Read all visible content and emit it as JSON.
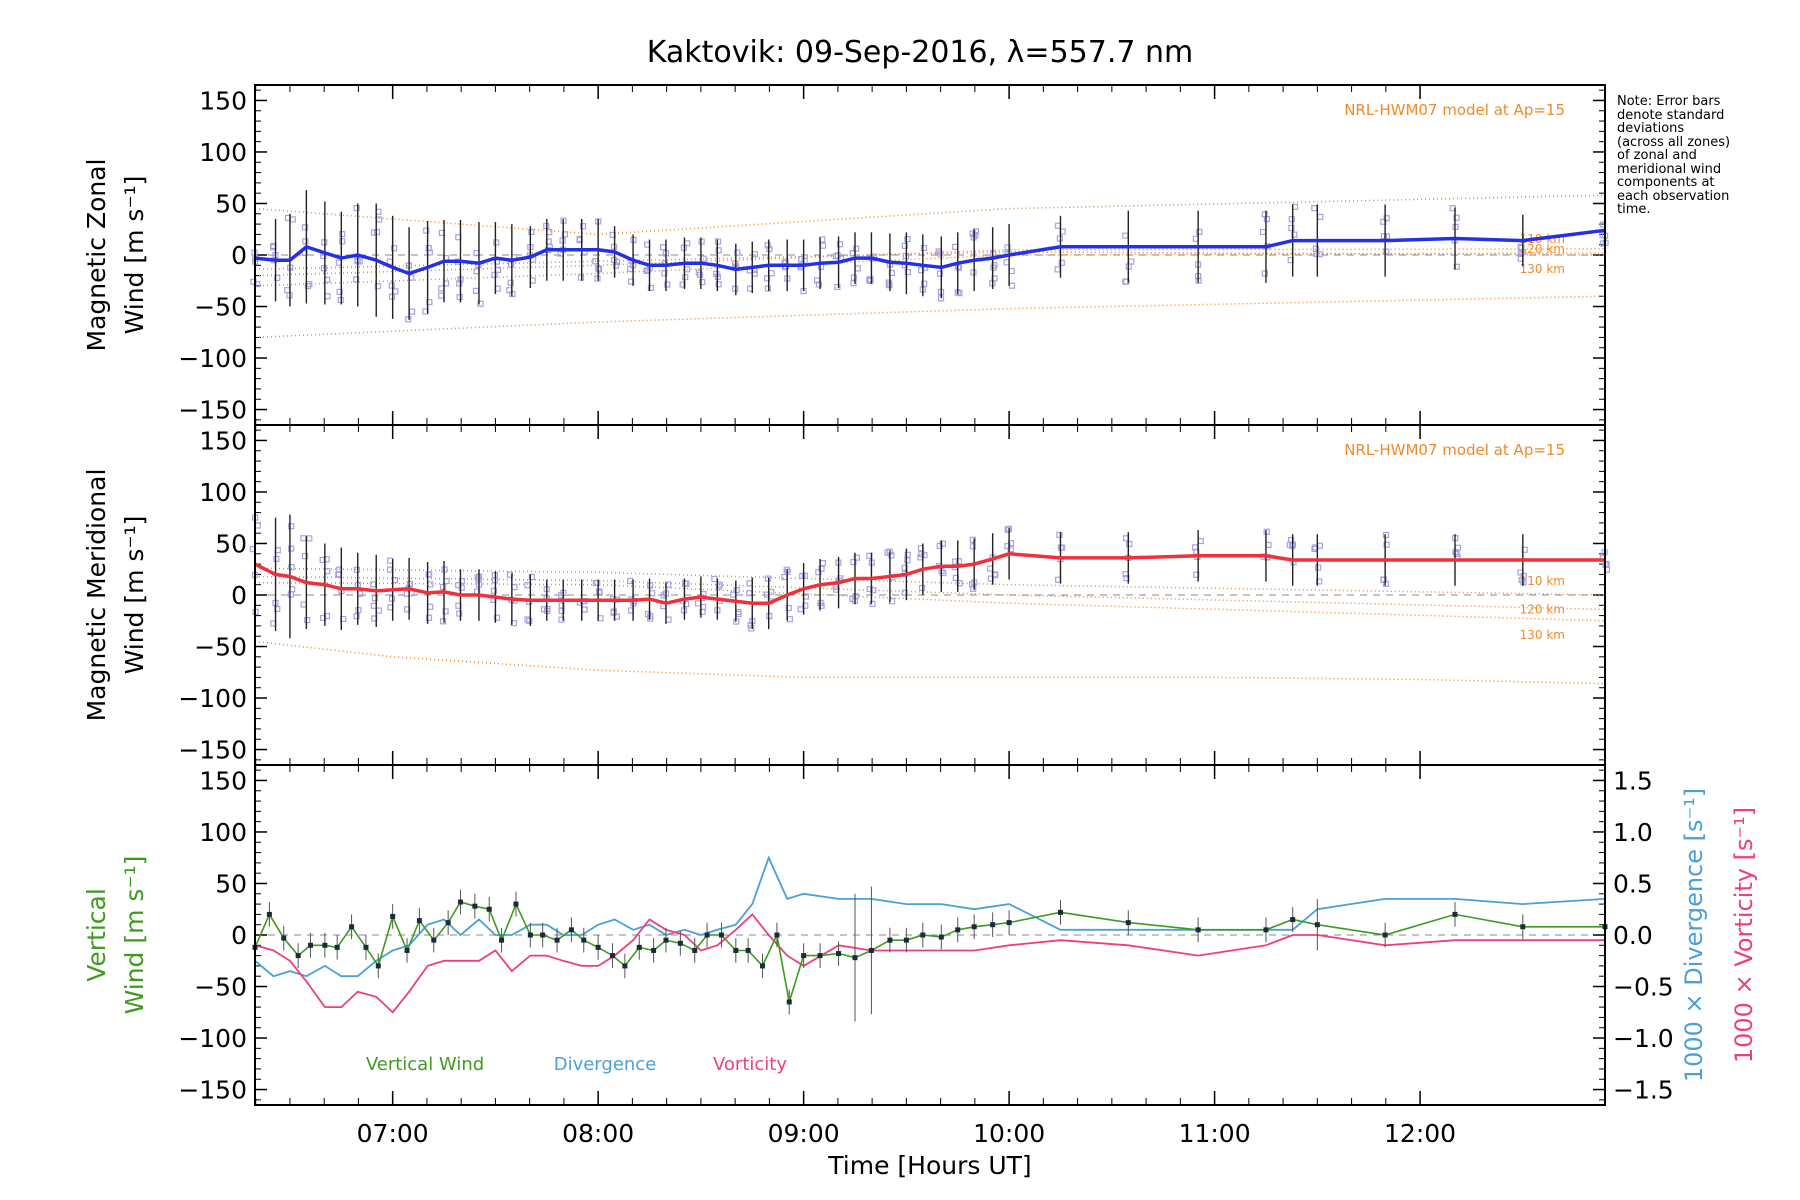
{
  "title": "Kaktovik: 09-Sep-2016, λ=557.7 nm",
  "note": {
    "lines": [
      "Note: Error bars",
      "denote standard",
      "deviations",
      "(across all zones)",
      "of zonal and",
      "meridional wind",
      "components at",
      "each observation",
      "time."
    ]
  },
  "colors": {
    "zonal": "#2430e8",
    "meridional": "#f0303a",
    "vertical": "#3f9b1e",
    "divergence": "#4aa0d8",
    "vorticity": "#ef3e80",
    "model": "#f08a2a",
    "scatter": "#a9a2e0",
    "zero_line": "#888888",
    "error_bar": "#222222"
  },
  "chart_data": [
    {
      "type": "line",
      "ylabel": [
        "Magnetic Zonal",
        "Wind [m s⁻¹]"
      ],
      "ylim": [
        -165,
        165
      ],
      "yticks": [
        "150",
        "100",
        "50",
        "0",
        "−50",
        "−100",
        "−150"
      ],
      "model_label": "NRL-HWM07 model at Ap=15",
      "model_series": [
        {
          "name": "110 km",
          "x": [
            6.33,
            8.0,
            10.0,
            12.9
          ],
          "y": [
            -30,
            -18,
            0,
            2
          ]
        },
        {
          "name": "120 km",
          "x": [
            6.33,
            8.0,
            10.0,
            12.9
          ],
          "y": [
            -20,
            -10,
            5,
            6
          ]
        },
        {
          "name": "130 km",
          "x": [
            6.33,
            8.0,
            10.0,
            12.9
          ],
          "y": [
            -14,
            -6,
            3,
            0
          ]
        },
        {
          "name": "",
          "x": [
            6.33,
            8.0,
            10.0,
            12.9
          ],
          "y": [
            45,
            20,
            45,
            58
          ]
        },
        {
          "name": "",
          "x": [
            6.33,
            8.0,
            10.0,
            12.9
          ],
          "y": [
            -80,
            -65,
            -52,
            -40
          ]
        }
      ],
      "series": [
        {
          "name": "Zonal wind",
          "x": [
            6.33,
            6.43,
            6.5,
            6.58,
            6.67,
            6.75,
            6.83,
            6.92,
            7.0,
            7.08,
            7.17,
            7.25,
            7.33,
            7.42,
            7.5,
            7.58,
            7.67,
            7.75,
            7.83,
            7.92,
            8.0,
            8.08,
            8.17,
            8.25,
            8.33,
            8.42,
            8.5,
            8.58,
            8.67,
            8.75,
            8.83,
            8.92,
            9.0,
            9.08,
            9.17,
            9.25,
            9.33,
            9.42,
            9.5,
            9.58,
            9.67,
            9.75,
            9.83,
            9.92,
            10.0,
            10.25,
            10.58,
            10.92,
            11.25,
            11.38,
            11.5,
            11.83,
            12.17,
            12.5,
            12.9
          ],
          "y": [
            -3,
            -5,
            -5,
            8,
            2,
            -3,
            0,
            -5,
            -12,
            -18,
            -12,
            -6,
            -6,
            -8,
            -3,
            -5,
            -2,
            5,
            5,
            5,
            5,
            3,
            -5,
            -10,
            -10,
            -8,
            -8,
            -10,
            -14,
            -12,
            -10,
            -10,
            -10,
            -8,
            -7,
            -3,
            -3,
            -7,
            -8,
            -10,
            -12,
            -8,
            -5,
            -3,
            0,
            8,
            8,
            8,
            8,
            14,
            14,
            14,
            16,
            14,
            24
          ],
          "err": [
            30,
            40,
            45,
            55,
            50,
            45,
            50,
            55,
            50,
            45,
            45,
            40,
            40,
            40,
            35,
            35,
            30,
            30,
            30,
            30,
            30,
            25,
            25,
            25,
            25,
            25,
            25,
            25,
            25,
            25,
            25,
            25,
            25,
            25,
            25,
            25,
            25,
            28,
            30,
            30,
            30,
            30,
            30,
            30,
            30,
            30,
            35,
            35,
            35,
            35,
            35,
            35,
            30,
            25,
            15
          ]
        }
      ]
    },
    {
      "type": "line",
      "ylabel": [
        "Magnetic Meridional",
        "Wind [m s⁻¹]"
      ],
      "ylim": [
        -165,
        165
      ],
      "yticks": [
        "150",
        "100",
        "50",
        "0",
        "−50",
        "−100",
        "−150"
      ],
      "model_label": "NRL-HWM07 model at Ap=15",
      "model_series": [
        {
          "name": "110 km",
          "x": [
            6.33,
            8.0,
            10.0,
            12.9
          ],
          "y": [
            26,
            22,
            10,
            0
          ]
        },
        {
          "name": "120 km",
          "x": [
            6.33,
            8.0,
            10.0,
            12.9
          ],
          "y": [
            18,
            14,
            0,
            -14
          ]
        },
        {
          "name": "130 km",
          "x": [
            6.33,
            8.0,
            10.0,
            12.9
          ],
          "y": [
            12,
            10,
            -8,
            -25
          ]
        },
        {
          "name": "",
          "x": [
            6.33,
            7.0,
            8.0,
            9.0,
            10.0,
            11.0,
            12.0,
            12.9
          ],
          "y": [
            -45,
            -60,
            -73,
            -80,
            -80,
            -80,
            -82,
            -86
          ]
        }
      ],
      "series": [
        {
          "name": "Meridional wind",
          "x": [
            6.33,
            6.43,
            6.5,
            6.58,
            6.67,
            6.75,
            6.83,
            6.92,
            7.0,
            7.08,
            7.17,
            7.25,
            7.33,
            7.42,
            7.5,
            7.58,
            7.67,
            7.75,
            7.83,
            7.92,
            8.0,
            8.08,
            8.17,
            8.25,
            8.33,
            8.42,
            8.5,
            8.58,
            8.67,
            8.75,
            8.83,
            8.92,
            9.0,
            9.08,
            9.17,
            9.25,
            9.33,
            9.42,
            9.5,
            9.58,
            9.67,
            9.75,
            9.83,
            9.92,
            10.0,
            10.25,
            10.58,
            10.92,
            11.25,
            11.38,
            11.5,
            11.83,
            12.17,
            12.5,
            12.9
          ],
          "y": [
            30,
            20,
            18,
            12,
            10,
            6,
            6,
            4,
            5,
            6,
            2,
            3,
            0,
            0,
            -2,
            -4,
            -5,
            -5,
            -5,
            -5,
            -5,
            -5,
            -5,
            -4,
            -8,
            -4,
            -2,
            -4,
            -6,
            -8,
            -8,
            0,
            6,
            10,
            12,
            16,
            16,
            18,
            20,
            25,
            28,
            28,
            30,
            35,
            40,
            36,
            36,
            38,
            38,
            34,
            34,
            34,
            34,
            34,
            34
          ],
          "err": [
            55,
            55,
            60,
            45,
            40,
            40,
            35,
            35,
            30,
            30,
            30,
            30,
            25,
            25,
            25,
            25,
            25,
            20,
            20,
            20,
            20,
            20,
            20,
            20,
            20,
            20,
            20,
            20,
            20,
            25,
            25,
            25,
            25,
            25,
            25,
            25,
            25,
            25,
            25,
            25,
            25,
            25,
            25,
            25,
            25,
            25,
            25,
            25,
            25,
            25,
            25,
            25,
            25,
            25,
            10
          ]
        }
      ]
    },
    {
      "type": "line",
      "xlabel": "Time [Hours UT]",
      "xlim": [
        6.33,
        12.9
      ],
      "xticks": [
        "07:00",
        "08:00",
        "09:00",
        "10:00",
        "11:00",
        "12:00"
      ],
      "ylabel": [
        "Vertical",
        "Wind [m s⁻¹]"
      ],
      "ylim": [
        -165,
        165
      ],
      "yticks": [
        "150",
        "100",
        "50",
        "0",
        "−50",
        "−100",
        "−150"
      ],
      "y2label_divergence": "1000 × Divergence [s⁻¹]",
      "y2label_vorticity": "1000 × Vorticity [s⁻¹]",
      "y2lim": [
        -1.65,
        1.65
      ],
      "y2ticks": [
        "1.5",
        "1.0",
        "0.5",
        "0.0",
        "−0.5",
        "−1.0",
        "−1.5"
      ],
      "legend": [
        "Vertical Wind",
        "Divergence",
        "Vorticity"
      ],
      "series": [
        {
          "name": "Vertical Wind",
          "x": [
            6.33,
            6.4,
            6.47,
            6.54,
            6.6,
            6.67,
            6.73,
            6.8,
            6.87,
            6.93,
            7.0,
            7.07,
            7.13,
            7.2,
            7.27,
            7.33,
            7.4,
            7.47,
            7.53,
            7.6,
            7.67,
            7.73,
            7.8,
            7.87,
            7.93,
            8.0,
            8.07,
            8.13,
            8.2,
            8.27,
            8.33,
            8.4,
            8.47,
            8.53,
            8.6,
            8.67,
            8.73,
            8.8,
            8.87,
            8.93,
            9.0,
            9.08,
            9.17,
            9.25,
            9.33,
            9.42,
            9.5,
            9.58,
            9.67,
            9.75,
            9.83,
            9.92,
            10.0,
            10.25,
            10.58,
            10.92,
            11.25,
            11.38,
            11.5,
            11.83,
            12.17,
            12.5,
            12.9
          ],
          "y": [
            -12,
            20,
            -3,
            -20,
            -10,
            -10,
            -12,
            8,
            -12,
            -30,
            18,
            -15,
            14,
            -5,
            12,
            32,
            28,
            25,
            -5,
            30,
            0,
            0,
            -5,
            5,
            -5,
            -12,
            -20,
            -30,
            -12,
            -15,
            -5,
            -8,
            -15,
            0,
            0,
            -15,
            -15,
            -30,
            0,
            -65,
            -20,
            -20,
            -18,
            -22,
            -15,
            -5,
            -5,
            0,
            -2,
            5,
            8,
            10,
            12,
            22,
            12,
            5,
            5,
            15,
            10,
            0,
            20,
            8,
            8
          ],
          "err": [
            12,
            12,
            12,
            12,
            12,
            12,
            12,
            12,
            12,
            12,
            12,
            12,
            12,
            12,
            12,
            12,
            12,
            12,
            12,
            12,
            12,
            12,
            12,
            12,
            12,
            12,
            12,
            12,
            12,
            12,
            12,
            12,
            12,
            12,
            12,
            12,
            12,
            12,
            12,
            12,
            12,
            12,
            12,
            62,
            62,
            12,
            12,
            12,
            12,
            12,
            12,
            12,
            12,
            12,
            12,
            12,
            12,
            12,
            25,
            12,
            12,
            12,
            12
          ]
        },
        {
          "name": "Divergence",
          "x": [
            6.33,
            6.42,
            6.5,
            6.58,
            6.67,
            6.75,
            6.83,
            6.92,
            7.0,
            7.08,
            7.17,
            7.25,
            7.33,
            7.42,
            7.5,
            7.58,
            7.67,
            7.75,
            7.83,
            7.92,
            8.0,
            8.08,
            8.17,
            8.25,
            8.33,
            8.42,
            8.5,
            8.58,
            8.67,
            8.75,
            8.83,
            8.92,
            9.0,
            9.17,
            9.33,
            9.5,
            9.67,
            9.83,
            10.0,
            10.25,
            10.58,
            10.92,
            11.25,
            11.38,
            11.5,
            11.83,
            12.17,
            12.5,
            12.9
          ],
          "y": [
            -0.25,
            -0.4,
            -0.35,
            -0.4,
            -0.3,
            -0.4,
            -0.4,
            -0.25,
            -0.15,
            -0.1,
            0.1,
            0.15,
            0.0,
            0.15,
            0.0,
            0.0,
            0.1,
            0.1,
            0.0,
            0.0,
            0.1,
            0.15,
            0.05,
            0.1,
            0.0,
            0.05,
            0.0,
            0.05,
            0.1,
            0.3,
            0.75,
            0.35,
            0.4,
            0.35,
            0.35,
            0.3,
            0.3,
            0.25,
            0.3,
            0.05,
            0.05,
            0.05,
            0.05,
            0.05,
            0.25,
            0.35,
            0.35,
            0.3,
            0.35
          ]
        },
        {
          "name": "Vorticity",
          "x": [
            6.33,
            6.42,
            6.5,
            6.58,
            6.67,
            6.75,
            6.83,
            6.92,
            7.0,
            7.08,
            7.17,
            7.25,
            7.33,
            7.42,
            7.5,
            7.58,
            7.67,
            7.75,
            7.83,
            7.92,
            8.0,
            8.08,
            8.17,
            8.25,
            8.33,
            8.42,
            8.5,
            8.58,
            8.67,
            8.75,
            8.83,
            8.92,
            9.0,
            9.17,
            9.33,
            9.5,
            9.67,
            9.83,
            10.0,
            10.25,
            10.58,
            10.92,
            11.25,
            11.38,
            11.5,
            11.83,
            12.17,
            12.5,
            12.9
          ],
          "y": [
            -0.1,
            -0.15,
            -0.25,
            -0.45,
            -0.7,
            -0.7,
            -0.55,
            -0.6,
            -0.75,
            -0.55,
            -0.3,
            -0.25,
            -0.25,
            -0.25,
            -0.15,
            -0.35,
            -0.2,
            -0.2,
            -0.25,
            -0.3,
            -0.3,
            -0.2,
            -0.05,
            0.15,
            0.05,
            0.0,
            -0.15,
            -0.1,
            0.05,
            0.2,
            0.0,
            -0.2,
            -0.3,
            -0.1,
            -0.15,
            -0.15,
            -0.15,
            -0.15,
            -0.1,
            -0.05,
            -0.1,
            -0.2,
            -0.1,
            0.0,
            0.0,
            -0.1,
            -0.05,
            -0.05,
            -0.05
          ]
        }
      ]
    }
  ]
}
